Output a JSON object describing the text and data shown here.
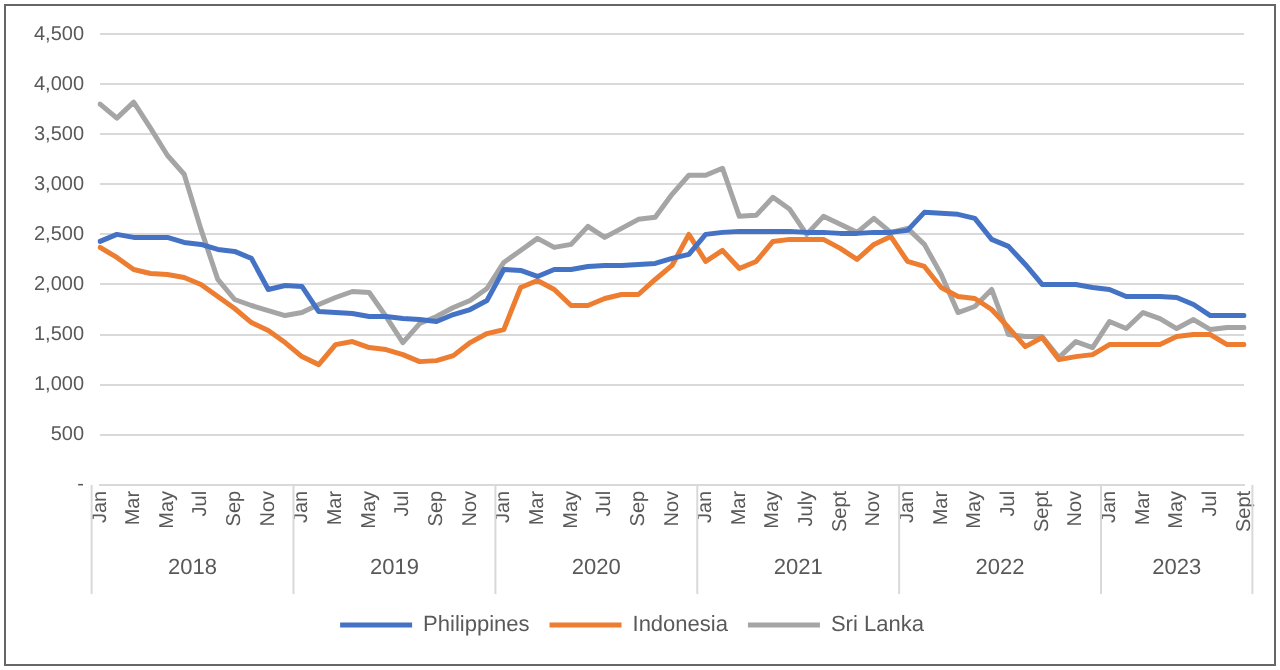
{
  "chart_data": {
    "type": "line",
    "categories": [
      "Jan",
      null,
      "Mar",
      null,
      "May",
      null,
      "Jul",
      null,
      "Sep",
      null,
      "Nov",
      null,
      "Jan",
      null,
      "Mar",
      null,
      "May",
      null,
      "Jul",
      null,
      "Sep",
      null,
      "Nov",
      null,
      "Jan",
      null,
      "Mar",
      null,
      "May",
      null,
      "Jul",
      null,
      "Sep",
      null,
      "Nov",
      null,
      "Jan",
      null,
      "Mar",
      null,
      "May",
      null,
      "July",
      null,
      "Sept",
      null,
      "Nov",
      null,
      "Jan",
      null,
      "Mar",
      null,
      "May",
      null,
      "Jul",
      null,
      "Sept",
      null,
      "Nov",
      null,
      "Jan",
      null,
      "Mar",
      null,
      "May",
      null,
      "Jul",
      null,
      "Sept"
    ],
    "series": [
      {
        "name": "Philippines",
        "color": "#4472c4",
        "values": [
          2430,
          2500,
          2470,
          2470,
          2470,
          2420,
          2400,
          2350,
          2330,
          2260,
          1950,
          1990,
          1980,
          1730,
          1720,
          1710,
          1680,
          1680,
          1660,
          1650,
          1630,
          1700,
          1750,
          1840,
          2150,
          2140,
          2080,
          2150,
          2150,
          2180,
          2190,
          2190,
          2200,
          2210,
          2260,
          2300,
          2500,
          2520,
          2530,
          2530,
          2530,
          2530,
          2520,
          2520,
          2510,
          2510,
          2520,
          2520,
          2540,
          2720,
          2710,
          2700,
          2660,
          2450,
          2380,
          2200,
          2000,
          2000,
          2000,
          1970,
          1950,
          1880,
          1880,
          1880,
          1870,
          1800,
          1690,
          1690,
          1690
        ]
      },
      {
        "name": "Indonesia",
        "color": "#ed7d31",
        "values": [
          2370,
          2270,
          2150,
          2110,
          2100,
          2070,
          2000,
          1880,
          1760,
          1620,
          1540,
          1420,
          1280,
          1200,
          1400,
          1430,
          1370,
          1350,
          1300,
          1230,
          1240,
          1290,
          1420,
          1510,
          1550,
          1970,
          2040,
          1950,
          1790,
          1790,
          1860,
          1900,
          1900,
          2050,
          2190,
          2500,
          2230,
          2340,
          2160,
          2230,
          2430,
          2450,
          2450,
          2450,
          2360,
          2250,
          2400,
          2480,
          2230,
          2180,
          1970,
          1880,
          1860,
          1750,
          1570,
          1380,
          1470,
          1250,
          1280,
          1300,
          1400,
          1400,
          1400,
          1400,
          1480,
          1500,
          1500,
          1400,
          1400
        ]
      },
      {
        "name": "Sri Lanka",
        "color": "#a5a5a5",
        "values": [
          3800,
          3660,
          3820,
          3560,
          3290,
          3100,
          2550,
          2050,
          1850,
          1790,
          1740,
          1690,
          1720,
          1800,
          1870,
          1930,
          1920,
          1680,
          1420,
          1610,
          1680,
          1770,
          1840,
          1960,
          2220,
          2340,
          2460,
          2370,
          2400,
          2580,
          2470,
          2560,
          2650,
          2670,
          2900,
          3090,
          3090,
          3160,
          2680,
          2690,
          2870,
          2750,
          2500,
          2680,
          2600,
          2520,
          2660,
          2520,
          2560,
          2400,
          2100,
          1720,
          1780,
          1950,
          1500,
          1480,
          1480,
          1270,
          1430,
          1370,
          1630,
          1560,
          1720,
          1660,
          1560,
          1650,
          1550,
          1570,
          1570
        ]
      }
    ],
    "ylim": [
      0,
      4500
    ],
    "yticks": [
      {
        "value": 0,
        "label": "-"
      },
      {
        "value": 500,
        "label": "500"
      },
      {
        "value": 1000,
        "label": "1,000"
      },
      {
        "value": 1500,
        "label": "1,500"
      },
      {
        "value": 2000,
        "label": "2,000"
      },
      {
        "value": 2500,
        "label": "2,500"
      },
      {
        "value": 3000,
        "label": "3,000"
      },
      {
        "value": 3500,
        "label": "3,500"
      },
      {
        "value": 4000,
        "label": "4,000"
      },
      {
        "value": 4500,
        "label": "4,500"
      }
    ],
    "grid": "y",
    "legend": "bottom",
    "marker": "none",
    "line_style": "solid",
    "annotations": [
      "2018",
      "2019",
      "2020",
      "2021",
      "2022",
      "2023"
    ]
  }
}
